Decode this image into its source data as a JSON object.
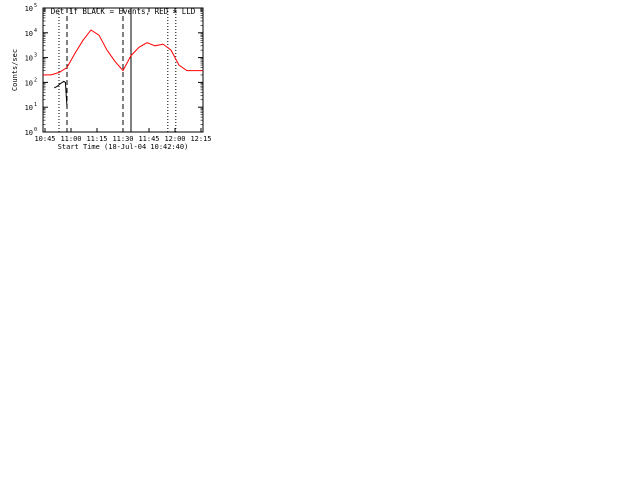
{
  "common": {
    "ylabel": "Counts/sec",
    "xlabel": "Start Time (18-Jul-04 10:42:40)",
    "xticks": [
      "10:45",
      "11:00",
      "11:15",
      "11:30",
      "11:45",
      "12:00",
      "12:15"
    ],
    "yticks": [
      "10",
      "10",
      "10",
      "10",
      "10",
      "10"
    ],
    "yexp": [
      "0",
      "1",
      "2",
      "3",
      "4",
      "5"
    ],
    "colors": {
      "events": "#000000",
      "lld": "#ff0000"
    }
  },
  "chart_data": [
    {
      "type": "line",
      "title": "Det 1f BLACK = Events, RED = LLD",
      "x_unit": "minutes after 10:42:40",
      "xlim": [
        0,
        100
      ],
      "y_scale": "log",
      "ylim": [
        1,
        100000
      ],
      "series": [
        {
          "name": "Events",
          "x": [
            7,
            9,
            10,
            11,
            12,
            13,
            14,
            15
          ],
          "y": [
            60,
            70,
            80,
            90,
            100,
            110,
            100,
            10
          ]
        },
        {
          "name": "LLD",
          "x": [
            0,
            5,
            10,
            15,
            20,
            25,
            30,
            35,
            40,
            45,
            50,
            55,
            60,
            65,
            70,
            75,
            80,
            85,
            90,
            95,
            100
          ],
          "y": [
            200,
            200,
            250,
            400,
            1500,
            5000,
            13000,
            8000,
            2000,
            700,
            300,
            1200,
            2600,
            4000,
            3000,
            3500,
            2000,
            500,
            300,
            300,
            300
          ]
        }
      ],
      "verticals": [
        {
          "x": 10,
          "style": "dotted"
        },
        {
          "x": 15,
          "style": "dashed"
        },
        {
          "x": 50,
          "style": "dashed"
        },
        {
          "x": 55,
          "style": "solid"
        },
        {
          "x": 78,
          "style": "dotted"
        },
        {
          "x": 83,
          "style": "dotted"
        }
      ]
    }
  ]
}
